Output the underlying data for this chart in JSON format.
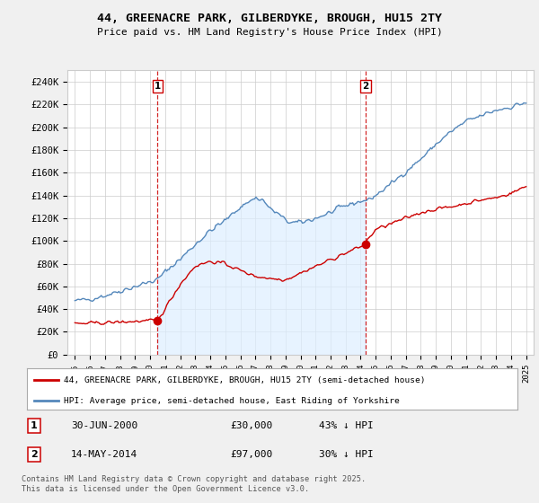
{
  "title": "44, GREENACRE PARK, GILBERDYKE, BROUGH, HU15 2TY",
  "subtitle": "Price paid vs. HM Land Registry's House Price Index (HPI)",
  "background_color": "#f0f0f0",
  "plot_bg_color": "#ffffff",
  "hpi_color": "#5588bb",
  "hpi_fill_color": "#ddeeff",
  "price_color": "#cc0000",
  "marker1_x": 5.5,
  "marker2_x": 19.33,
  "annotation1": "1",
  "annotation2": "2",
  "note1_date": "30-JUN-2000",
  "note1_price": "£30,000",
  "note1_hpi": "43% ↓ HPI",
  "note2_date": "14-MAY-2014",
  "note2_price": "£97,000",
  "note2_hpi": "30% ↓ HPI",
  "legend1": "44, GREENACRE PARK, GILBERDYKE, BROUGH, HU15 2TY (semi-detached house)",
  "legend2": "HPI: Average price, semi-detached house, East Riding of Yorkshire",
  "footer": "Contains HM Land Registry data © Crown copyright and database right 2025.\nThis data is licensed under the Open Government Licence v3.0.",
  "ylim": [
    0,
    250000
  ],
  "yticks": [
    0,
    20000,
    40000,
    60000,
    80000,
    100000,
    120000,
    140000,
    160000,
    180000,
    200000,
    220000,
    240000
  ],
  "ytick_labels": [
    "£0",
    "£20K",
    "£40K",
    "£60K",
    "£80K",
    "£100K",
    "£120K",
    "£140K",
    "£160K",
    "£180K",
    "£200K",
    "£220K",
    "£240K"
  ],
  "hpi_anchor_x": [
    0,
    1,
    2,
    3,
    4,
    5,
    5.5,
    6,
    7,
    8,
    9,
    10,
    11,
    12,
    12.5,
    13,
    13.5,
    14,
    14.5,
    15,
    16,
    17,
    18,
    19,
    19.5,
    20,
    21,
    22,
    23,
    24,
    25,
    26,
    27,
    28,
    29,
    30
  ],
  "hpi_anchor_y": [
    47000,
    49000,
    52000,
    56000,
    60000,
    64000,
    66000,
    73000,
    84000,
    97000,
    109000,
    118000,
    130000,
    138000,
    136000,
    128000,
    124000,
    118000,
    116000,
    116000,
    120000,
    125000,
    131000,
    135000,
    136000,
    140000,
    150000,
    161000,
    172000,
    185000,
    196000,
    205000,
    210000,
    215000,
    218000,
    222000
  ],
  "price_anchor_x": [
    0,
    5.5,
    5.6,
    7,
    8,
    9,
    10,
    11,
    12,
    13,
    14,
    19.33,
    19.4,
    20,
    21,
    22,
    23,
    24,
    25,
    26,
    27,
    28,
    29,
    30
  ],
  "price_anchor_y": [
    27000,
    30000,
    32000,
    62000,
    78000,
    82000,
    80000,
    74000,
    69000,
    67000,
    66000,
    97000,
    100000,
    110000,
    115000,
    120000,
    125000,
    128000,
    130000,
    133000,
    136000,
    138000,
    142000,
    148000
  ]
}
